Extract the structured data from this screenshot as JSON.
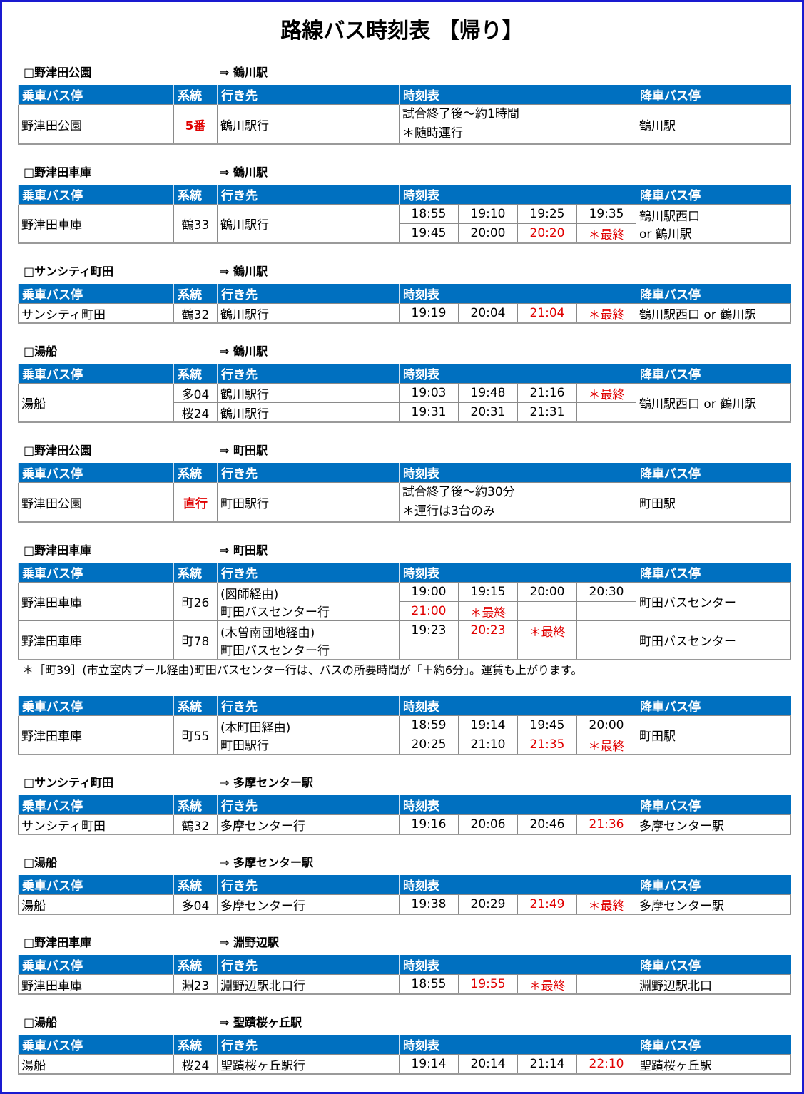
{
  "title": "路線バス時刻表 【帰り】",
  "header": [
    "乗車バス停",
    "系統",
    "行き先",
    "時刻表",
    "降車バス停"
  ],
  "sections": [
    {
      "from": "□野津田公園",
      "to": "⇒ 鶴川駅",
      "groups": [
        {
          "stop": "野津田公園",
          "alight": [
            "鶴川駅"
          ],
          "lines": [
            {
              "route": "5番",
              "emphasis": true,
              "dest": [
                "鶴川駅行"
              ],
              "schedule": [
                "試合終了後～約1時間",
                "＊随時運行"
              ]
            }
          ]
        }
      ]
    },
    {
      "from": "□野津田車庫",
      "to": "⇒ 鶴川駅",
      "groups": [
        {
          "stop": "野津田車庫",
          "alight": [
            "鶴川駅西口",
            "or 鶴川駅"
          ],
          "lines": [
            {
              "route": "鶴33",
              "dest": [
                "鶴川駅行"
              ],
              "times": [
                "18:55",
                "19:10",
                "19:25",
                "19:35",
                "19:45",
                "20:00",
                "20:20",
                "＊最終"
              ],
              "red": [
                6,
                7
              ]
            }
          ]
        }
      ]
    },
    {
      "from": "□サンシティ町田",
      "to": "⇒ 鶴川駅",
      "groups": [
        {
          "stop": "サンシティ町田",
          "alight": [
            "鶴川駅西口 or 鶴川駅"
          ],
          "lines": [
            {
              "route": "鶴32",
              "dest": [
                "鶴川駅行"
              ],
              "times": [
                "19:19",
                "20:04",
                "21:04",
                "＊最終"
              ],
              "red": [
                2,
                3
              ]
            }
          ]
        }
      ]
    },
    {
      "from": "□湯船",
      "to": "⇒ 鶴川駅",
      "groups": [
        {
          "stop": "湯船",
          "alight": [
            "鶴川駅西口 or 鶴川駅"
          ],
          "lines": [
            {
              "route": "多04",
              "dest": [
                "鶴川駅行"
              ],
              "times": [
                "19:03",
                "19:48",
                "21:16",
                "＊最終"
              ],
              "red": [
                3
              ]
            },
            {
              "route": "桜24",
              "dest": [
                "鶴川駅行"
              ],
              "times": [
                "19:31",
                "20:31",
                "21:31",
                null
              ],
              "red": []
            }
          ]
        }
      ]
    },
    {
      "from": "□野津田公園",
      "to": "⇒ 町田駅",
      "groups": [
        {
          "stop": "野津田公園",
          "alight": [
            "町田駅"
          ],
          "lines": [
            {
              "route": "直行",
              "emphasis": true,
              "dest": [
                "町田駅行"
              ],
              "schedule": [
                "試合終了後～約30分",
                "＊運行は3台のみ"
              ]
            }
          ]
        }
      ]
    },
    {
      "from": "□野津田車庫",
      "to": "⇒ 町田駅",
      "groups": [
        {
          "stop": "野津田車庫",
          "alight": [
            "町田バスセンター"
          ],
          "lines": [
            {
              "route": "町26",
              "dest": [
                "(図師経由)",
                "町田バスセンター行"
              ],
              "times": [
                "19:00",
                "19:15",
                "20:00",
                "20:30",
                "21:00",
                "＊最終",
                null,
                null
              ],
              "red": [
                4,
                5
              ]
            }
          ]
        },
        {
          "stop": "野津田車庫",
          "alight": [
            "町田バスセンター"
          ],
          "lines": [
            {
              "route": "町78",
              "dest": [
                "(木曽南団地経由)",
                "町田バスセンター行"
              ],
              "times": [
                "19:23",
                "20:23",
                "＊最終",
                null,
                null,
                null,
                null,
                null
              ],
              "red": [
                1,
                2
              ]
            }
          ]
        }
      ],
      "note": "＊［町39］(市立室内プール経由)町田バスセンター行は、バスの所要時間が「＋約6分」。運賃も上がります。"
    },
    {
      "groups": [
        {
          "stop": "野津田車庫",
          "alight": [
            "町田駅"
          ],
          "lines": [
            {
              "route": "町55",
              "dest": [
                "(本町田経由)",
                "町田駅行"
              ],
              "times": [
                "18:59",
                "19:14",
                "19:45",
                "20:00",
                "20:25",
                "21:10",
                "21:35",
                "＊最終"
              ],
              "red": [
                6,
                7
              ]
            }
          ]
        }
      ]
    },
    {
      "from": "□サンシティ町田",
      "to": "⇒ 多摩センター駅",
      "groups": [
        {
          "stop": "サンシティ町田",
          "alight": [
            "多摩センター駅"
          ],
          "lines": [
            {
              "route": "鶴32",
              "dest": [
                "多摩センター行"
              ],
              "times": [
                "19:16",
                "20:06",
                "20:46",
                "21:36"
              ],
              "red": [
                3
              ]
            }
          ]
        }
      ]
    },
    {
      "from": "□湯船",
      "to": "⇒ 多摩センター駅",
      "groups": [
        {
          "stop": "湯船",
          "alight": [
            "多摩センター駅"
          ],
          "lines": [
            {
              "route": "多04",
              "dest": [
                "多摩センター行"
              ],
              "times": [
                "19:38",
                "20:29",
                "21:49",
                "＊最終"
              ],
              "red": [
                2,
                3
              ]
            }
          ]
        }
      ]
    },
    {
      "from": "□野津田車庫",
      "to": "⇒ 淵野辺駅",
      "groups": [
        {
          "stop": "野津田車庫",
          "alight": [
            "淵野辺駅北口"
          ],
          "lines": [
            {
              "route": "淵23",
              "dest": [
                "淵野辺駅北口行"
              ],
              "times": [
                "18:55",
                "19:55",
                "＊最終",
                null
              ],
              "red": [
                1,
                2
              ]
            }
          ]
        }
      ]
    },
    {
      "from": "□湯船",
      "to": "⇒ 聖蹟桜ヶ丘駅",
      "groups": [
        {
          "stop": "湯船",
          "alight": [
            "聖蹟桜ヶ丘駅"
          ],
          "lines": [
            {
              "route": "桜24",
              "dest": [
                "聖蹟桜ヶ丘駅行"
              ],
              "times": [
                "19:14",
                "20:14",
                "21:14",
                "22:10"
              ],
              "red": [
                3
              ]
            }
          ]
        }
      ]
    }
  ]
}
